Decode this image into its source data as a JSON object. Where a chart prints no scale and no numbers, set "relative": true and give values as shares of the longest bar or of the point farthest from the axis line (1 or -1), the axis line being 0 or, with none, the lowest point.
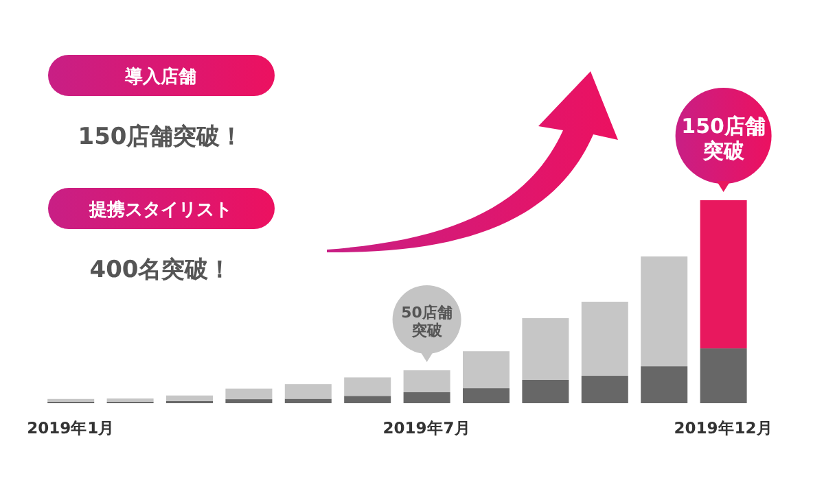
{
  "chart_data": {
    "type": "bar",
    "stacked": true,
    "relative": true,
    "categories": [
      "2019年1月",
      null,
      null,
      null,
      null,
      null,
      "2019年7月",
      null,
      null,
      null,
      null,
      "2019年12月"
    ],
    "series": [
      {
        "color": "#676767",
        "values": [
          0.007,
          0.007,
          0.011,
          0.02,
          0.022,
          0.036,
          0.054,
          0.074,
          0.115,
          0.135,
          0.182,
          0.27
        ]
      },
      {
        "colors": [
          "#c6c6c6",
          "#c6c6c6",
          "#c6c6c6",
          "#c6c6c6",
          "#c6c6c6",
          "#c6c6c6",
          "#c6c6c6",
          "#c6c6c6",
          "#c6c6c6",
          "#c6c6c6",
          "#c6c6c6",
          "#e8185e"
        ],
        "values": [
          0.014,
          0.016,
          0.027,
          0.052,
          0.072,
          0.091,
          0.108,
          0.182,
          0.304,
          0.365,
          0.541,
          0.73
        ]
      }
    ],
    "annotations": [
      "導入店舗",
      "150店舗突破！",
      "提携スタイリスト",
      "400名突破！",
      {
        "text": "50店舗突破",
        "x": "2019年7月",
        "y": 0.162
      },
      {
        "text": "150店舗突破",
        "x": "2019年12月",
        "y": 1.0
      }
    ]
  }
}
